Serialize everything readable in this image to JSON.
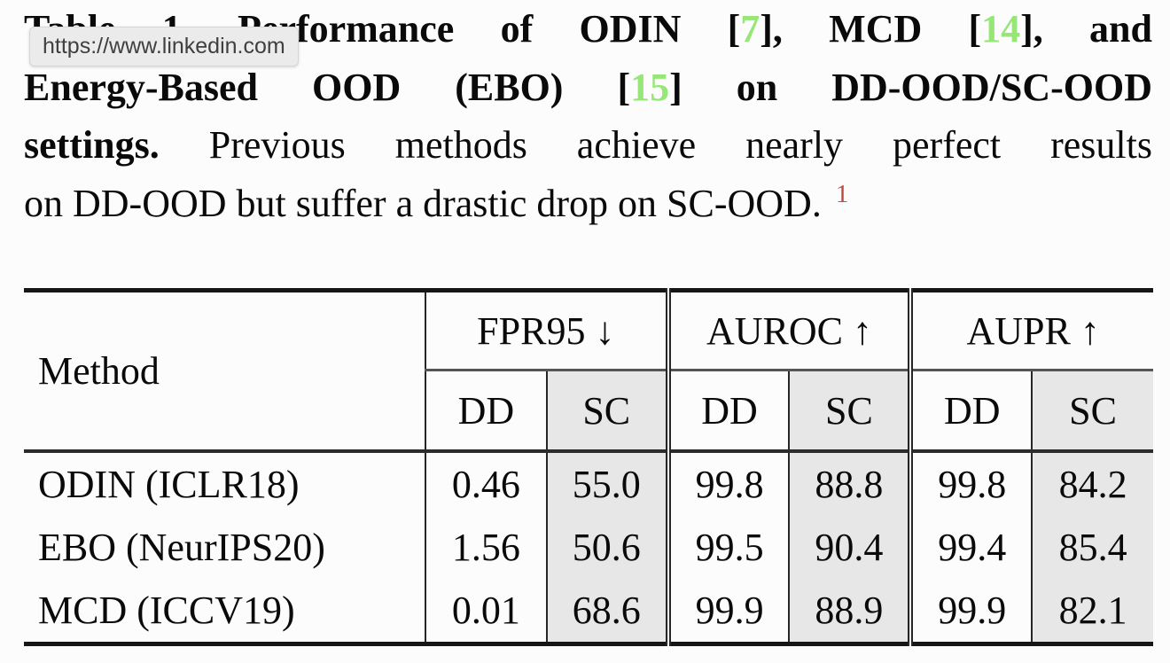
{
  "page": {
    "background": "#fcfcfc"
  },
  "tooltip": {
    "url": "https://www.linkedin.com",
    "background": "#ebebeb",
    "text_color": "#3f3f3f"
  },
  "colors": {
    "citation_green": "#96e678",
    "footnote_red": "#c4473c",
    "sc_column_bg": "#e7e7e7",
    "rule_color": "#161616"
  },
  "caption": {
    "lines": [
      {
        "justify": true,
        "segments": [
          {
            "text": "Table 1. ",
            "bold": true
          },
          {
            "text": "Performance of ODIN [",
            "bold": true
          },
          {
            "text": "7",
            "bold": true,
            "color": "green",
            "link": true
          },
          {
            "text": "], MCD [",
            "bold": true
          },
          {
            "text": "14",
            "bold": true,
            "color": "green",
            "link": true
          },
          {
            "text": "], and",
            "bold": true
          }
        ]
      },
      {
        "justify": true,
        "segments": [
          {
            "text": "Energy-Based OOD (EBO) [",
            "bold": true
          },
          {
            "text": "15",
            "bold": true,
            "color": "green",
            "link": true
          },
          {
            "text": "] on DD-OOD/SC-OOD",
            "bold": true
          }
        ]
      },
      {
        "justify": true,
        "segments": [
          {
            "text": "settings. ",
            "bold": true
          },
          {
            "text": "Previous methods achieve nearly perfect results"
          }
        ]
      },
      {
        "justify": false,
        "segments": [
          {
            "text": "on DD-OOD but suffer a drastic drop on SC-OOD. "
          },
          {
            "text": "1",
            "color": "red",
            "sup": true,
            "link": true
          }
        ]
      }
    ]
  },
  "table": {
    "method_header": "Method",
    "groups": [
      {
        "label": "FPR95 ↓"
      },
      {
        "label": "AUROC ↑"
      },
      {
        "label": "AUPR ↑"
      }
    ],
    "subheaders": [
      "DD",
      "SC",
      "DD",
      "SC",
      "DD",
      "SC"
    ],
    "rows": [
      {
        "method": "ODIN (ICLR18)",
        "values": [
          "0.46",
          "55.0",
          "99.8",
          "88.8",
          "99.8",
          "84.2"
        ]
      },
      {
        "method": "EBO (NeurIPS20)",
        "values": [
          "1.56",
          "50.6",
          "99.5",
          "90.4",
          "99.4",
          "85.4"
        ]
      },
      {
        "method": "MCD (ICCV19)",
        "values": [
          "0.01",
          "68.6",
          "99.9",
          "88.9",
          "99.9",
          "82.1"
        ]
      }
    ]
  }
}
